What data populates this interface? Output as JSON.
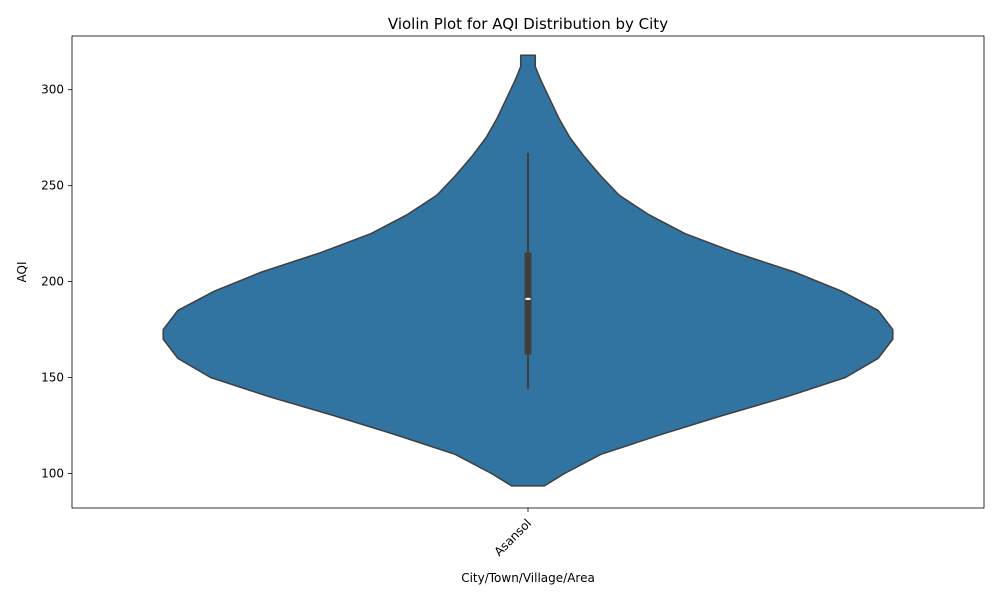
{
  "chart_data": {
    "type": "violin",
    "title": "Violin Plot for AQI Distribution by City",
    "xlabel": "City/Town/Village/Area",
    "ylabel": "AQI",
    "categories": [
      "Asansol"
    ],
    "y_ticks": [
      100,
      150,
      200,
      250,
      300
    ],
    "ylim": [
      82,
      328
    ],
    "grid": false,
    "color": "#3274a1",
    "violins": [
      {
        "category": "Asansol",
        "min": 93.5,
        "max": 318,
        "whisker_low": 144,
        "whisker_high": 267,
        "q1": 162,
        "median": 191,
        "q3": 215,
        "density": [
          [
            93.5,
            0.045
          ],
          [
            100,
            0.1
          ],
          [
            110,
            0.2
          ],
          [
            120,
            0.36
          ],
          [
            130,
            0.53
          ],
          [
            140,
            0.71
          ],
          [
            150,
            0.87
          ],
          [
            160,
            0.96
          ],
          [
            170,
            1.0
          ],
          [
            175,
            1.0
          ],
          [
            185,
            0.96
          ],
          [
            195,
            0.86
          ],
          [
            205,
            0.73
          ],
          [
            215,
            0.57
          ],
          [
            225,
            0.43
          ],
          [
            235,
            0.33
          ],
          [
            245,
            0.25
          ],
          [
            255,
            0.2
          ],
          [
            265,
            0.155
          ],
          [
            275,
            0.115
          ],
          [
            285,
            0.085
          ],
          [
            295,
            0.06
          ],
          [
            305,
            0.035
          ],
          [
            312,
            0.02
          ],
          [
            318,
            0.02
          ]
        ]
      }
    ]
  }
}
